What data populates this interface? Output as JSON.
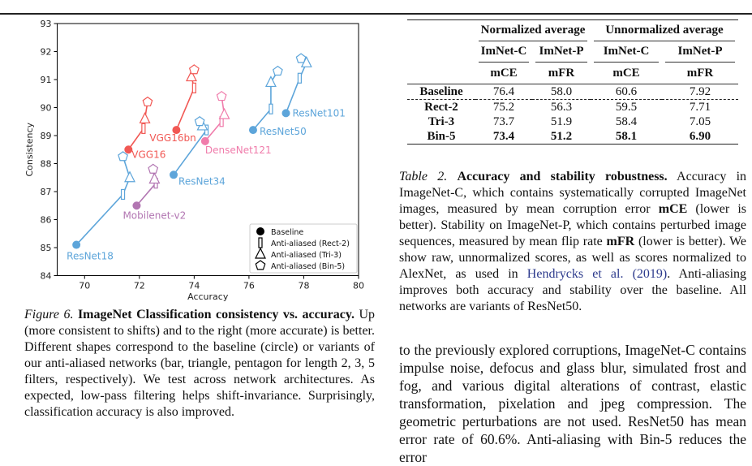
{
  "chart_data": {
    "type": "scatter",
    "xlabel": "Accuracy",
    "ylabel": "Consistency",
    "xlim": [
      69,
      80
    ],
    "ylim": [
      84,
      93
    ],
    "xticks": [
      70,
      72,
      74,
      76,
      78,
      80
    ],
    "yticks": [
      84,
      85,
      86,
      87,
      88,
      89,
      90,
      91,
      92,
      93
    ],
    "grid": false,
    "legend_position": "bottom-right",
    "legend": [
      {
        "marker": "circle",
        "label": "Baseline"
      },
      {
        "marker": "bar",
        "label": "Anti-aliased (Rect-2)"
      },
      {
        "marker": "triangle",
        "label": "Anti-aliased (Tri-3)"
      },
      {
        "marker": "pentagon",
        "label": "Anti-aliased (Bin-5)"
      }
    ],
    "series": [
      {
        "name": "ResNet18",
        "color": "#5da5da",
        "points": [
          [
            69.7,
            85.1
          ],
          [
            71.4,
            86.9
          ],
          [
            71.65,
            87.5
          ],
          [
            71.4,
            88.25
          ]
        ]
      },
      {
        "name": "ResNet34",
        "color": "#5da5da",
        "points": [
          [
            73.25,
            87.6
          ],
          [
            74.45,
            89.2
          ],
          [
            74.3,
            89.35
          ],
          [
            74.2,
            89.5
          ]
        ]
      },
      {
        "name": "ResNet50",
        "color": "#5da5da",
        "points": [
          [
            76.15,
            89.2
          ],
          [
            76.8,
            89.95
          ],
          [
            76.8,
            90.9
          ],
          [
            77.05,
            91.3
          ]
        ]
      },
      {
        "name": "ResNet101",
        "color": "#5da5da",
        "points": [
          [
            77.35,
            89.8
          ],
          [
            77.85,
            91.05
          ],
          [
            78.1,
            91.6
          ],
          [
            77.9,
            91.75
          ]
        ]
      },
      {
        "name": "VGG16",
        "color": "#f15854",
        "points": [
          [
            71.6,
            88.5
          ],
          [
            72.15,
            89.25
          ],
          [
            72.2,
            89.6
          ],
          [
            72.3,
            90.2
          ]
        ]
      },
      {
        "name": "VGG16bn",
        "color": "#f15854",
        "points": [
          [
            73.35,
            89.2
          ],
          [
            74.0,
            90.7
          ],
          [
            73.9,
            91.1
          ],
          [
            74.0,
            91.35
          ]
        ]
      },
      {
        "name": "DenseNet121",
        "color": "#f07cab",
        "points": [
          [
            74.4,
            88.8
          ],
          [
            75.0,
            89.5
          ],
          [
            75.1,
            89.75
          ],
          [
            75.0,
            90.4
          ]
        ]
      },
      {
        "name": "Mobilenet-v2",
        "color": "#b276b2",
        "points": [
          [
            71.9,
            86.5
          ],
          [
            72.6,
            87.3
          ],
          [
            72.55,
            87.45
          ],
          [
            72.5,
            87.8
          ]
        ]
      }
    ]
  },
  "figure_caption": {
    "label": "Figure 6.",
    "title": "ImageNet Classification consistency vs. accuracy.",
    "text": "Up (more consistent to shifts) and to the right (more accurate) is better. Different shapes correspond to the baseline (circle) or variants of our anti-aliased networks (bar, triangle, pentagon for length 2, 3, 5 filters, respectively). We test across network architectures. As expected, low-pass filtering helps shift-invariance. Surprisingly, classification accuracy is also improved."
  },
  "table": {
    "group_headers": [
      "Normalized average",
      "Unnormalized average"
    ],
    "dataset_headers": [
      "ImNet-C",
      "ImNet-P",
      "ImNet-C",
      "ImNet-P"
    ],
    "metric_headers": [
      "mCE",
      "mFR",
      "mCE",
      "mFR"
    ],
    "rows": [
      {
        "label": "Baseline",
        "values": [
          "76.4",
          "58.0",
          "60.6",
          "7.92"
        ]
      },
      {
        "label": "Rect-2",
        "values": [
          "75.2",
          "56.3",
          "59.5",
          "7.71"
        ]
      },
      {
        "label": "Tri-3",
        "values": [
          "73.7",
          "51.9",
          "58.4",
          "7.05"
        ]
      },
      {
        "label": "Bin-5",
        "values": [
          "73.4",
          "51.2",
          "58.1",
          "6.90"
        ]
      }
    ]
  },
  "table_caption": {
    "label": "Table 2.",
    "title": "Accuracy and stability robustness.",
    "t1": "Accuracy in ImageNet-C, which contains systematically corrupted ImageNet images, measured by mean corruption error ",
    "b1": "mCE",
    "t2": " (lower is better). Stability on ImageNet-P, which contains perturbed image sequences, measured by mean flip rate ",
    "b2": "mFR",
    "t3": " (lower is better). We show raw, unnormalized scores, as well as scores normalized to AlexNet, as used in ",
    "cite": "Hendrycks et al. (2019)",
    "t4": ". Anti-aliasing improves both accuracy and stability over the baseline. All networks are variants of ResNet50."
  },
  "body_text": "to the previously explored corruptions, ImageNet-C contains impulse noise, defocus and glass blur, simulated frost and fog, and various digital alterations of contrast, elastic transformation, pixelation and jpeg compression. The geometric perturbations are not used. ResNet50 has mean error rate of 60.6%. Anti-aliasing with Bin-5 reduces the error"
}
